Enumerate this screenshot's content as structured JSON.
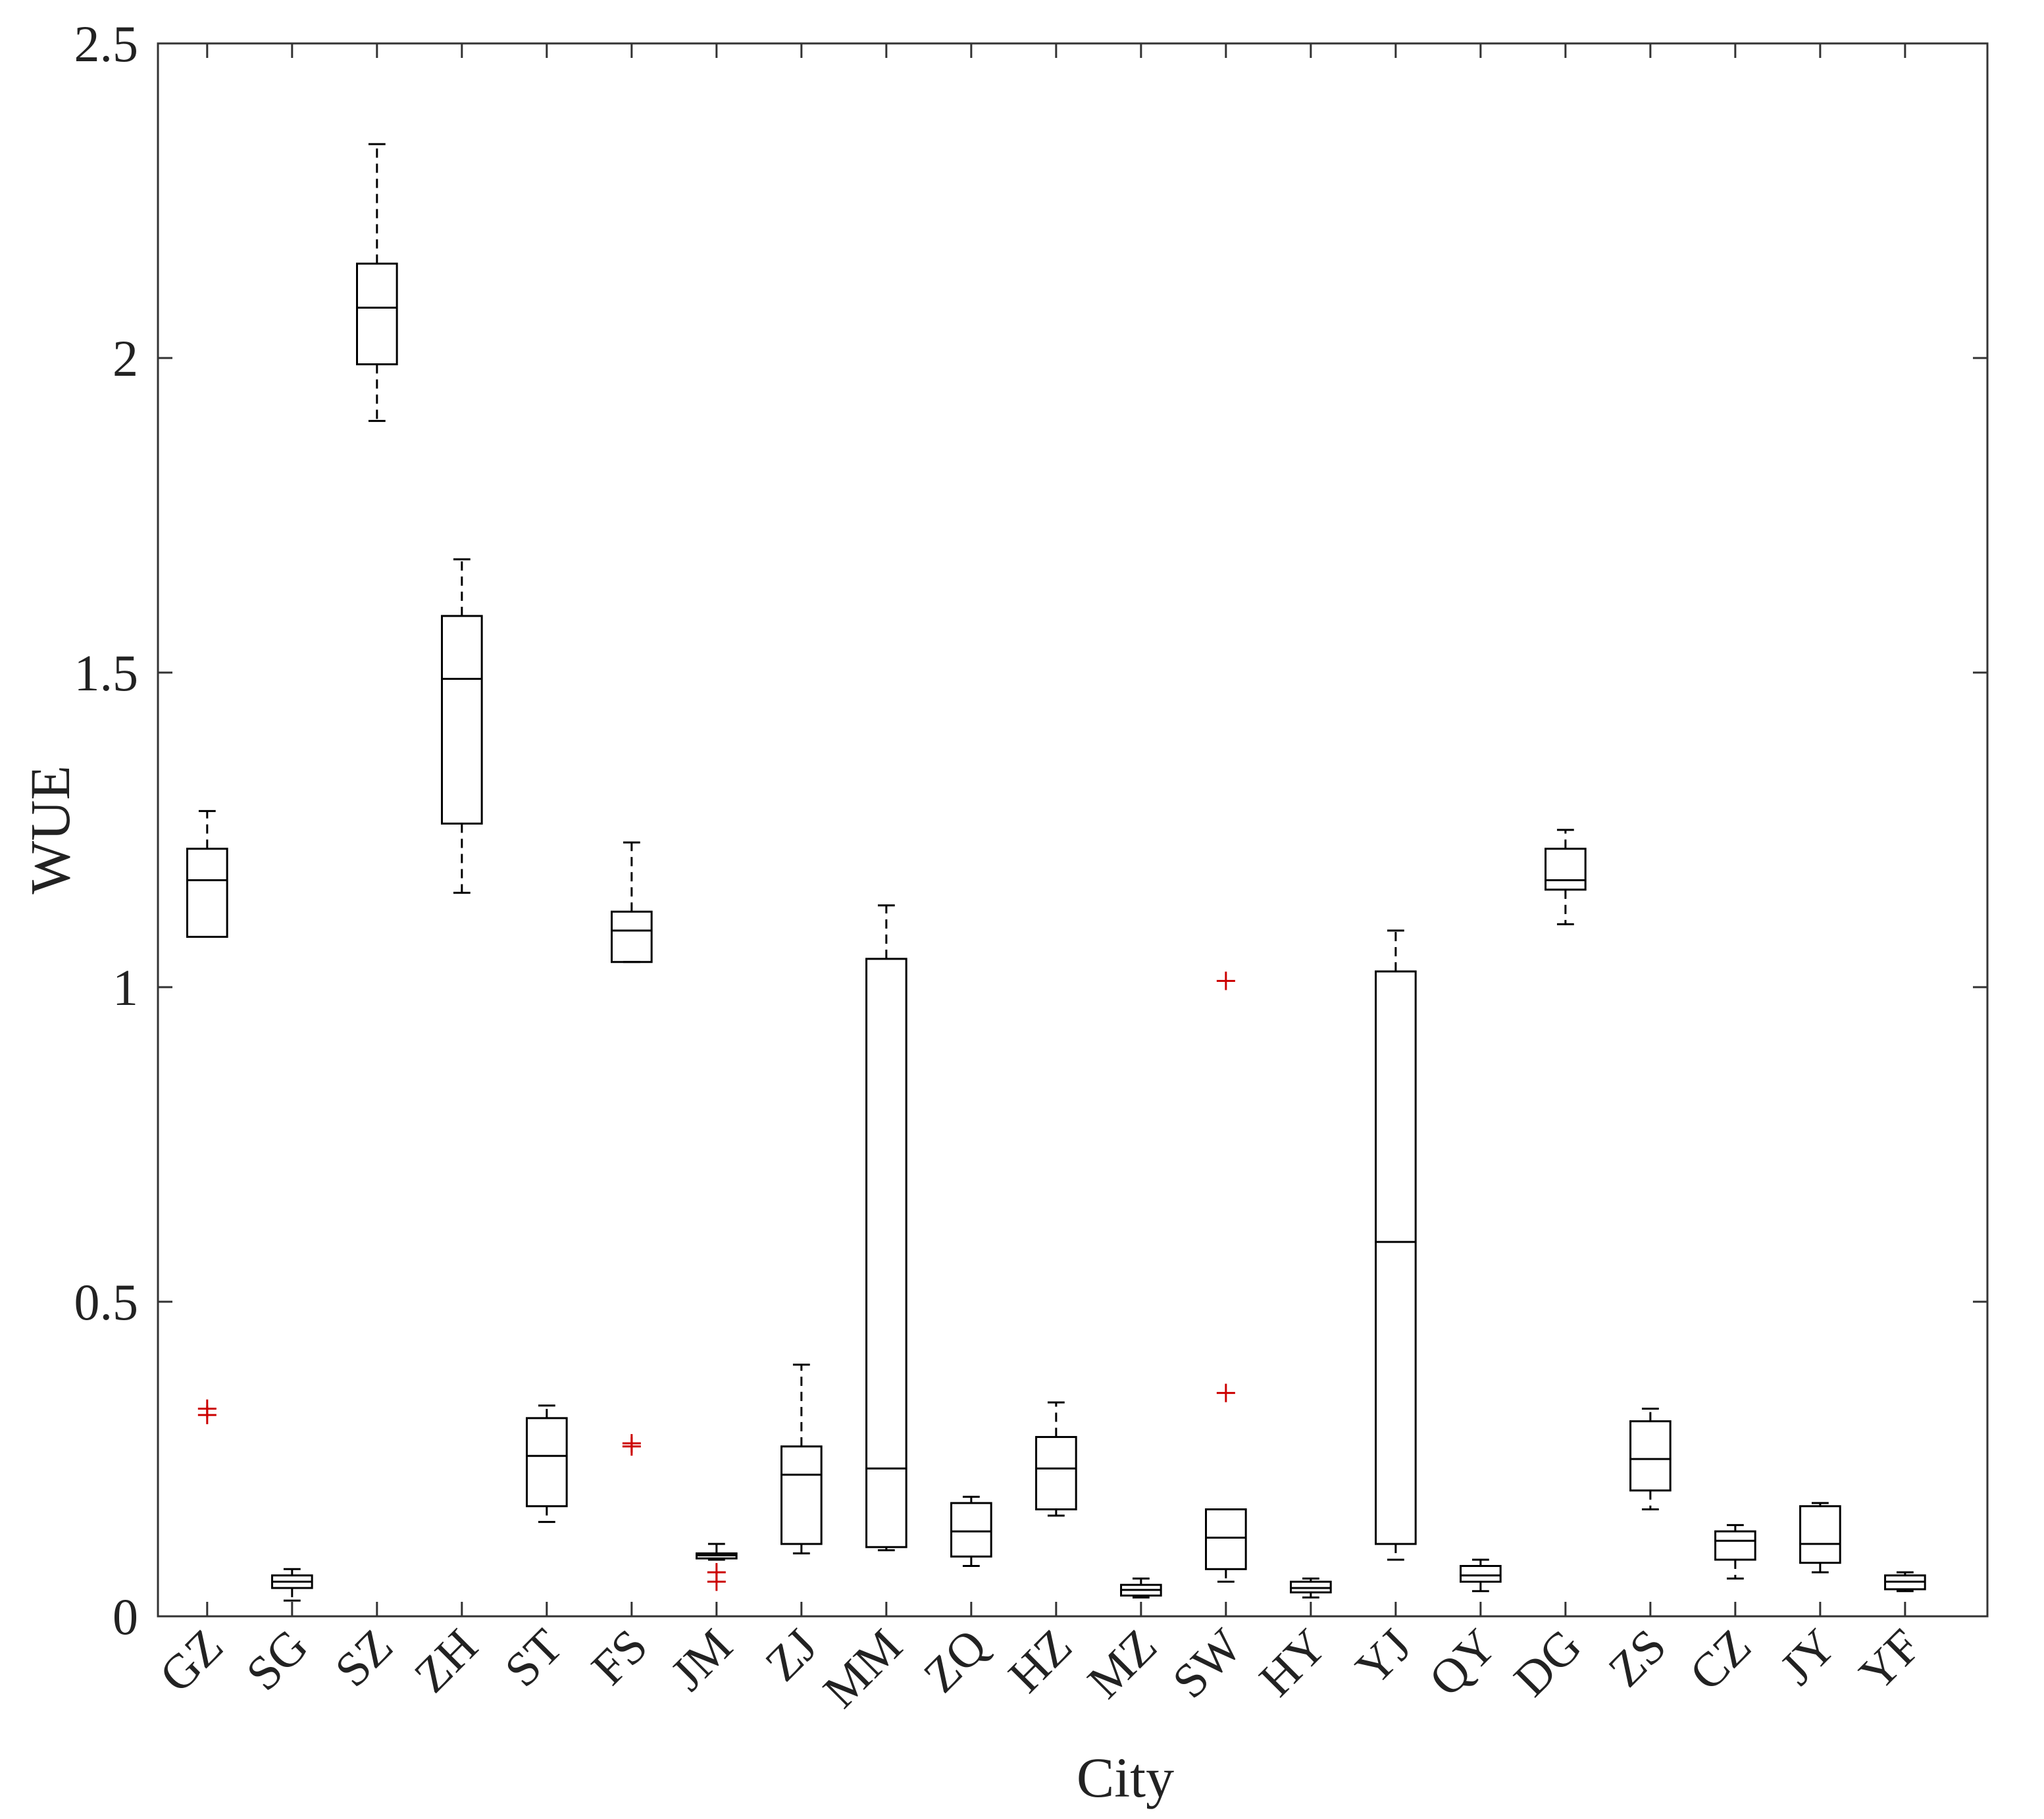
{
  "chart_data": {
    "type": "box",
    "xlabel": "City",
    "ylabel": "WUE",
    "ylim": [
      0,
      2.5
    ],
    "yticks": [
      0,
      0.5,
      1,
      1.5,
      2,
      2.5
    ],
    "ytick_labels": [
      "0",
      "0.5",
      "1",
      "1.5",
      "2",
      "2.5"
    ],
    "grid": false,
    "legend": "none",
    "box_color": "#000000",
    "outlier_color": "#cc0000",
    "categories": [
      "GZ",
      "SG",
      "SZ",
      "ZH",
      "ST",
      "FS",
      "JM",
      "ZJ",
      "MM",
      "ZQ",
      "HZ",
      "MZ",
      "SW",
      "HY",
      "YJ",
      "QY",
      "DG",
      "ZS",
      "CZ",
      "JY",
      "YF"
    ],
    "boxes": [
      {
        "category": "GZ",
        "whisker_low": 1.08,
        "q1": 1.08,
        "median": 1.17,
        "q3": 1.22,
        "whisker_high": 1.28,
        "outliers": [
          0.32,
          0.33
        ]
      },
      {
        "category": "SG",
        "whisker_low": 0.025,
        "q1": 0.045,
        "median": 0.055,
        "q3": 0.065,
        "whisker_high": 0.075,
        "outliers": []
      },
      {
        "category": "SZ",
        "whisker_low": 1.9,
        "q1": 1.99,
        "median": 2.08,
        "q3": 2.15,
        "whisker_high": 2.34,
        "outliers": []
      },
      {
        "category": "ZH",
        "whisker_low": 1.15,
        "q1": 1.26,
        "median": 1.49,
        "q3": 1.59,
        "whisker_high": 1.68,
        "outliers": []
      },
      {
        "category": "ST",
        "whisker_low": 0.15,
        "q1": 0.175,
        "median": 0.255,
        "q3": 0.315,
        "whisker_high": 0.335,
        "outliers": []
      },
      {
        "category": "FS",
        "whisker_low": 1.04,
        "q1": 1.04,
        "median": 1.09,
        "q3": 1.12,
        "whisker_high": 1.23,
        "outliers": [
          0.27,
          0.275
        ]
      },
      {
        "category": "JM",
        "whisker_low": 0.09,
        "q1": 0.092,
        "median": 0.097,
        "q3": 0.1,
        "whisker_high": 0.115,
        "outliers": [
          0.07,
          0.055
        ]
      },
      {
        "category": "ZJ",
        "whisker_low": 0.1,
        "q1": 0.115,
        "median": 0.225,
        "q3": 0.27,
        "whisker_high": 0.4,
        "outliers": []
      },
      {
        "category": "MM",
        "whisker_low": 0.105,
        "q1": 0.11,
        "median": 0.235,
        "q3": 1.045,
        "whisker_high": 1.13,
        "outliers": []
      },
      {
        "category": "ZQ",
        "whisker_low": 0.08,
        "q1": 0.095,
        "median": 0.135,
        "q3": 0.18,
        "whisker_high": 0.19,
        "outliers": []
      },
      {
        "category": "HZ",
        "whisker_low": 0.16,
        "q1": 0.17,
        "median": 0.235,
        "q3": 0.285,
        "whisker_high": 0.34,
        "outliers": []
      },
      {
        "category": "MZ",
        "whisker_low": 0.03,
        "q1": 0.033,
        "median": 0.042,
        "q3": 0.05,
        "whisker_high": 0.06,
        "outliers": []
      },
      {
        "category": "SW",
        "whisker_low": 0.055,
        "q1": 0.075,
        "median": 0.125,
        "q3": 0.17,
        "whisker_high": 0.17,
        "outliers": [
          1.01,
          0.355
        ]
      },
      {
        "category": "HY",
        "whisker_low": 0.03,
        "q1": 0.038,
        "median": 0.045,
        "q3": 0.055,
        "whisker_high": 0.06,
        "outliers": []
      },
      {
        "category": "YJ",
        "whisker_low": 0.09,
        "q1": 0.115,
        "median": 0.595,
        "q3": 1.025,
        "whisker_high": 1.09,
        "outliers": []
      },
      {
        "category": "QY",
        "whisker_low": 0.04,
        "q1": 0.055,
        "median": 0.065,
        "q3": 0.08,
        "whisker_high": 0.09,
        "outliers": []
      },
      {
        "category": "DG",
        "whisker_low": 1.1,
        "q1": 1.155,
        "median": 1.17,
        "q3": 1.22,
        "whisker_high": 1.25,
        "outliers": []
      },
      {
        "category": "ZS",
        "whisker_low": 0.17,
        "q1": 0.2,
        "median": 0.25,
        "q3": 0.31,
        "whisker_high": 0.33,
        "outliers": []
      },
      {
        "category": "CZ",
        "whisker_low": 0.06,
        "q1": 0.09,
        "median": 0.12,
        "q3": 0.135,
        "whisker_high": 0.145,
        "outliers": []
      },
      {
        "category": "JY",
        "whisker_low": 0.07,
        "q1": 0.085,
        "median": 0.115,
        "q3": 0.175,
        "whisker_high": 0.18,
        "outliers": []
      },
      {
        "category": "YF",
        "whisker_low": 0.04,
        "q1": 0.043,
        "median": 0.055,
        "q3": 0.065,
        "whisker_high": 0.07,
        "outliers": []
      }
    ]
  }
}
